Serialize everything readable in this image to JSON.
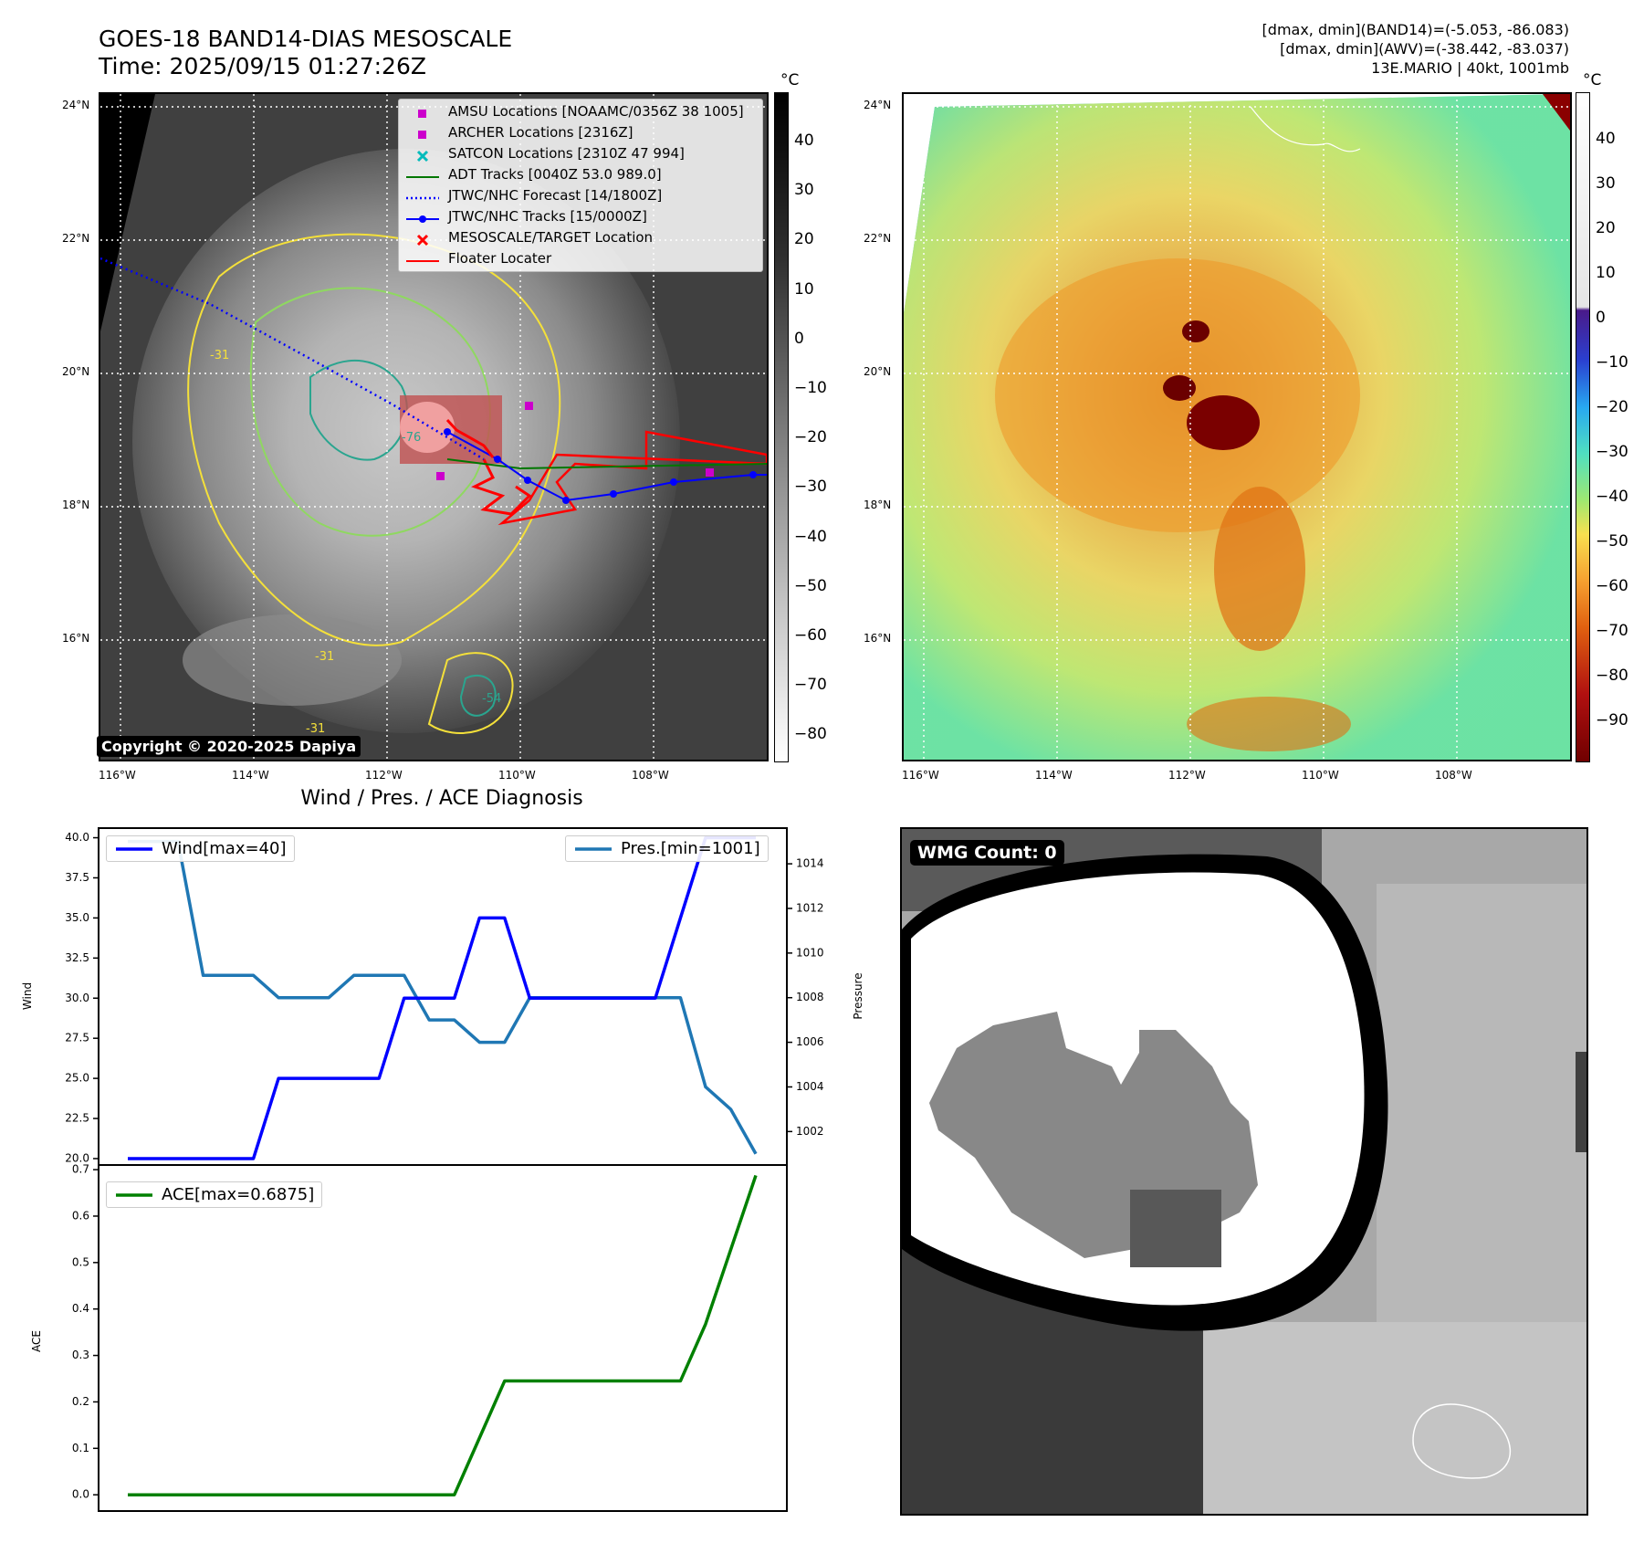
{
  "header": {
    "title_line1": "GOES-18 BAND14-DIAS MESOSCALE",
    "title_line2": "Time: 2025/09/15 01:27:26Z",
    "stats_line1": "[dmax, dmin](BAND14)=(-5.053, -86.083)",
    "stats_line2": "[dmax, dmin](AWV)=(-38.442, -83.037)",
    "stats_line3": "13E.MARIO | 40kt, 1001mb"
  },
  "map": {
    "lon_labels": [
      "116°W",
      "114°W",
      "112°W",
      "110°W",
      "108°W"
    ],
    "lat_labels": [
      "24°N",
      "22°N",
      "20°N",
      "18°N",
      "16°N"
    ],
    "copyright": "Copyright © 2020-2025 Dapiya",
    "legend": [
      {
        "label": "AMSU Locations [NOAAMC/0356Z 38 1005]",
        "symbol": "square",
        "color": "#cc00cc"
      },
      {
        "label": "ARCHER Locations [2316Z]",
        "symbol": "square",
        "color": "#cc00cc"
      },
      {
        "label": "SATCON Locations [2310Z 47 994]",
        "symbol": "x",
        "color": "#00bbbb"
      },
      {
        "label": "ADT Tracks [0040Z 53.0 989.0]",
        "symbol": "line",
        "color": "#007700"
      },
      {
        "label": "JTWC/NHC Forecast [14/1800Z]",
        "symbol": "dotted",
        "color": "#0000ff"
      },
      {
        "label": "JTWC/NHC Tracks [15/0000Z]",
        "symbol": "line-dot",
        "color": "#0000ff"
      },
      {
        "label": "MESOSCALE/TARGET Location",
        "symbol": "x",
        "color": "#ff0000"
      },
      {
        "label": "Floater Locater",
        "symbol": "line",
        "color": "#ff0000"
      }
    ],
    "contour_labels": [
      "-31",
      "-31",
      "-54",
      "-76",
      "-31"
    ]
  },
  "colorbar_gray": {
    "unit": "°C",
    "ticks": [
      "40",
      "30",
      "20",
      "10",
      "0",
      "−10",
      "−20",
      "−30",
      "−40",
      "−50",
      "−60",
      "−70",
      "−80"
    ]
  },
  "colorbar_color": {
    "unit": "°C",
    "ticks": [
      "40",
      "30",
      "20",
      "10",
      "0",
      "−10",
      "−20",
      "−30",
      "−40",
      "−50",
      "−60",
      "−70",
      "−80",
      "−90"
    ]
  },
  "diagnosis": {
    "title": "Wind / Pres. / ACE Diagnosis",
    "wind_legend": "Wind[max=40]",
    "pres_legend": "Pres.[min=1001]",
    "ace_legend": "ACE[max=0.6875]",
    "wind_axis_label": "Wind",
    "pres_axis_label": "Pressure",
    "ace_axis_label": "ACE",
    "wind_ticks": [
      "40.0",
      "37.5",
      "35.0",
      "32.5",
      "30.0",
      "27.5",
      "25.0",
      "22.5",
      "20.0"
    ],
    "pres_ticks": [
      "1014",
      "1012",
      "1010",
      "1008",
      "1006",
      "1004",
      "1002"
    ],
    "ace_ticks": [
      "0.7",
      "0.6",
      "0.5",
      "0.4",
      "0.3",
      "0.2",
      "0.1",
      "0.0"
    ]
  },
  "wmg": {
    "badge": "WMG Count: 0"
  },
  "chart_data": [
    {
      "type": "line",
      "title": "Wind / Pres. / ACE Diagnosis",
      "x": [
        0,
        1,
        2,
        3,
        4,
        5,
        6,
        7,
        8,
        9,
        10,
        11,
        12,
        13,
        14,
        15,
        16,
        17,
        18,
        19,
        20,
        21,
        22,
        23,
        24,
        25
      ],
      "series": [
        {
          "name": "Wind[max=40]",
          "color": "#0000ff",
          "axis": "left",
          "values": [
            20,
            20,
            20,
            20,
            20,
            20,
            25,
            25,
            25,
            25,
            25,
            30,
            30,
            30,
            35,
            35,
            30,
            30,
            30,
            30,
            30,
            30,
            35,
            40,
            40,
            40
          ]
        },
        {
          "name": "Pres.[min=1001]",
          "color": "#1f77b4",
          "axis": "right",
          "values": [
            1015,
            1015,
            1015,
            1009,
            1009,
            1009,
            1008,
            1008,
            1008,
            1009,
            1009,
            1009,
            1007,
            1007,
            1006,
            1006,
            1008,
            1008,
            1008,
            1008,
            1008,
            1008,
            1008,
            1004,
            1003,
            1001
          ]
        }
      ],
      "ylim_left": [
        19.6,
        40.6
      ],
      "ylim_right": [
        1000.5,
        1015.6
      ],
      "ylabel_left": "Wind",
      "ylabel_right": "Pressure",
      "legend_left": "top-left",
      "legend_right": "top-right"
    },
    {
      "type": "line",
      "x": [
        0,
        1,
        2,
        3,
        4,
        5,
        6,
        7,
        8,
        9,
        10,
        11,
        12,
        13,
        14,
        15,
        16,
        17,
        18,
        19,
        20,
        21,
        22,
        23,
        24,
        25
      ],
      "series": [
        {
          "name": "ACE[max=0.6875]",
          "color": "#008000",
          "values": [
            0,
            0,
            0,
            0,
            0,
            0,
            0,
            0,
            0,
            0,
            0,
            0,
            0,
            0,
            0.1225,
            0.245,
            0.245,
            0.245,
            0.245,
            0.245,
            0.245,
            0.245,
            0.245,
            0.3675,
            0.5275,
            0.6875
          ]
        }
      ],
      "ylim": [
        -0.035,
        0.71
      ],
      "ylabel": "ACE",
      "legend": "top-left"
    }
  ]
}
